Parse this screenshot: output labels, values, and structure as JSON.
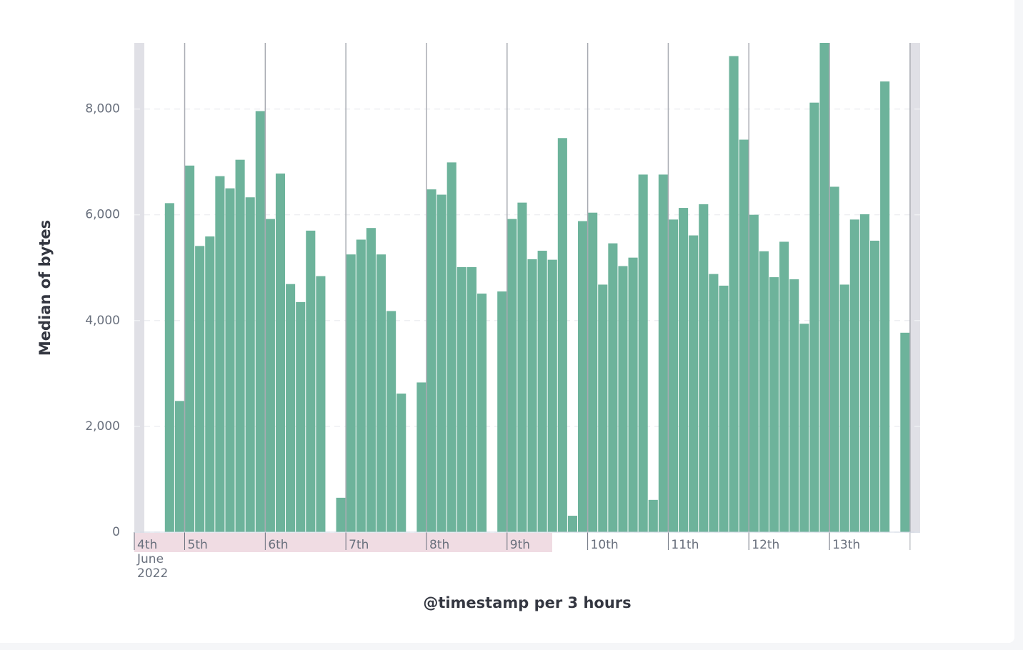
{
  "chart_data": {
    "type": "bar",
    "ylabel": "Median of bytes",
    "xlabel": "@timestamp per 3 hours",
    "period_label": [
      "June",
      "2022"
    ],
    "categories": [
      "4th",
      null,
      null,
      null,
      null,
      "5th",
      null,
      null,
      null,
      null,
      null,
      null,
      null,
      "6th",
      null,
      null,
      null,
      null,
      null,
      null,
      null,
      "7th",
      null,
      null,
      null,
      null,
      null,
      null,
      null,
      "8th",
      null,
      null,
      null,
      null,
      null,
      null,
      null,
      "9th",
      null,
      null,
      null,
      null,
      null,
      null,
      null,
      "10th",
      null,
      null,
      null,
      null,
      null,
      null,
      null,
      "11th",
      null,
      null,
      null,
      null,
      null,
      null,
      null,
      "12th",
      null,
      null,
      null,
      null,
      null,
      null,
      null,
      "13th",
      null,
      null,
      null,
      null,
      null,
      null,
      null,
      null
    ],
    "values": [
      null,
      null,
      null,
      6220,
      2480,
      6930,
      5410,
      5590,
      6730,
      6500,
      7040,
      6330,
      7960,
      5920,
      6780,
      4690,
      4350,
      5700,
      4840,
      null,
      650,
      5250,
      5530,
      5750,
      5250,
      4180,
      2620,
      null,
      2830,
      6480,
      6380,
      6990,
      5010,
      5010,
      4510,
      null,
      4550,
      5920,
      6230,
      5160,
      5320,
      5150,
      7450,
      310,
      5880,
      6040,
      4680,
      5460,
      5030,
      5190,
      6760,
      610,
      6760,
      5910,
      6130,
      5610,
      6200,
      4880,
      4660,
      9000,
      7420,
      6000,
      5310,
      4820,
      5490,
      4780,
      3940,
      8120,
      9300,
      6530,
      4680,
      5910,
      6010,
      5510,
      8520,
      null,
      3770,
      null
    ],
    "color": "#6db39b",
    "ylim": [
      0,
      9250
    ],
    "yticks": [
      0,
      {
        "value": 2000,
        "label": "2,000"
      },
      {
        "value": 4000,
        "label": "4,000"
      },
      {
        "value": 6000,
        "label": "6,000"
      },
      {
        "value": 8000,
        "label": "8,000"
      }
    ],
    "grid": true
  }
}
